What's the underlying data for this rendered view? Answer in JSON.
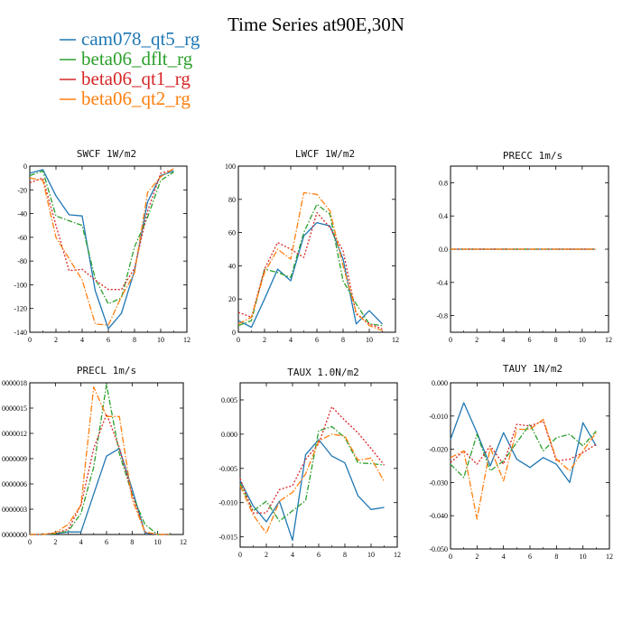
{
  "page_title": "Time Series at90E,30N",
  "colors": {
    "cam078_qt5_rg": "#1f77b4",
    "beta06_dflt_rg": "#2ca02c",
    "beta06_qt1_rg": "#d62728",
    "beta06_qt2_rg": "#ff7f0e"
  },
  "chart_data": [
    {
      "type": "line",
      "title": "SWCF   1W/m2",
      "x": [
        0,
        1,
        2,
        3,
        4,
        5,
        6,
        7,
        8,
        9,
        10,
        11
      ],
      "xlim": [
        0,
        12
      ],
      "xticks": [
        "0",
        "2",
        "4",
        "6",
        "8",
        "10",
        "12"
      ],
      "ylim": [
        -140,
        0
      ],
      "yticks": [
        "0",
        "-20",
        "-40",
        "-60",
        "-80",
        "-100",
        "-120",
        "-140"
      ],
      "ytick_values": [
        0,
        -20,
        -40,
        -60,
        -80,
        -100,
        -120,
        -140
      ],
      "series": [
        {
          "name": "cam078_qt5_rg",
          "values": [
            -6,
            -3,
            -25,
            -41,
            -42,
            -105,
            -137,
            -124,
            -88,
            -30,
            -8,
            -4
          ]
        },
        {
          "name": "beta06_dflt_rg",
          "values": [
            -8,
            -4,
            -42,
            -46,
            -50,
            -95,
            -116,
            -111,
            -68,
            -43,
            -12,
            -5
          ]
        },
        {
          "name": "beta06_qt1_rg",
          "values": [
            -14,
            -10,
            -50,
            -88,
            -87,
            -96,
            -104,
            -104,
            -86,
            -38,
            -6,
            -3
          ]
        },
        {
          "name": "beta06_qt2_rg",
          "values": [
            -10,
            -12,
            -60,
            -78,
            -96,
            -133,
            -134,
            -110,
            -90,
            -22,
            -9,
            -2
          ]
        }
      ]
    },
    {
      "type": "line",
      "title": "LWCF   1W/m2",
      "x": [
        0,
        1,
        2,
        3,
        4,
        5,
        6,
        7,
        8,
        9,
        10,
        11
      ],
      "xlim": [
        0,
        12
      ],
      "xticks": [
        "0",
        "2",
        "4",
        "6",
        "8",
        "10",
        "12"
      ],
      "ylim": [
        0,
        100
      ],
      "yticks": [
        "0",
        "20",
        "40",
        "60",
        "80",
        "100"
      ],
      "ytick_values": [
        0,
        20,
        40,
        60,
        80,
        100
      ],
      "series": [
        {
          "name": "cam078_qt5_rg",
          "values": [
            7,
            3,
            20,
            38,
            31,
            58,
            66,
            64,
            44,
            5,
            13,
            5
          ]
        },
        {
          "name": "beta06_dflt_rg",
          "values": [
            4,
            7,
            38,
            36,
            33,
            60,
            77,
            71,
            31,
            17,
            5,
            4
          ]
        },
        {
          "name": "beta06_qt1_rg",
          "values": [
            12,
            9,
            38,
            54,
            50,
            45,
            72,
            63,
            49,
            11,
            5,
            2
          ]
        },
        {
          "name": "beta06_qt2_rg",
          "values": [
            5,
            9,
            36,
            50,
            44,
            84,
            83,
            73,
            40,
            12,
            4,
            1
          ]
        }
      ]
    },
    {
      "type": "line",
      "title": "PRECC   1m/s",
      "x": [
        0,
        1,
        2,
        3,
        4,
        5,
        6,
        7,
        8,
        9,
        10,
        11
      ],
      "xlim": [
        0,
        12
      ],
      "xticks": [
        "0",
        "2",
        "4",
        "6",
        "8",
        "10",
        "12"
      ],
      "ylim": [
        -1,
        1
      ],
      "yticks": [
        "0.8",
        "0.4",
        "0.0",
        "-0.4",
        "-0.8"
      ],
      "ytick_values": [
        0.8,
        0.4,
        0.0,
        -0.4,
        -0.8
      ],
      "series": [
        {
          "name": "cam078_qt5_rg",
          "values": [
            0,
            0,
            0,
            0,
            0,
            0,
            0,
            0,
            0,
            0,
            0,
            0
          ]
        },
        {
          "name": "beta06_dflt_rg",
          "values": [
            0,
            0,
            0,
            0,
            0,
            0,
            0,
            0,
            0,
            0,
            0,
            0
          ]
        },
        {
          "name": "beta06_qt1_rg",
          "values": [
            0,
            0,
            0,
            0,
            0,
            0,
            0,
            0,
            0,
            0,
            0,
            0
          ]
        },
        {
          "name": "beta06_qt2_rg",
          "values": [
            0,
            0,
            0,
            0,
            0,
            0,
            0,
            0,
            0,
            0,
            0,
            0
          ]
        }
      ]
    },
    {
      "type": "line",
      "title": "PRECL   1m/s",
      "x": [
        0,
        1,
        2,
        3,
        4,
        5,
        6,
        7,
        8,
        9,
        10,
        11
      ],
      "xlim": [
        0,
        12
      ],
      "xticks": [
        "0",
        "2",
        "4",
        "6",
        "8",
        "10",
        "12"
      ],
      "ylim": [
        0,
        1.8e-05
      ],
      "yticks": [
        "0000018",
        "0000015",
        "0000012",
        "0000009",
        "0000006",
        "0000003",
        "0000000"
      ],
      "ytick_values": [
        1.8e-05,
        1.5e-05,
        1.2e-05,
        9e-06,
        6e-06,
        3e-06,
        0
      ],
      "series": [
        {
          "name": "cam078_qt5_rg",
          "values": [
            0,
            0,
            1e-07,
            3e-07,
            3e-07,
            4.8e-06,
            9.3e-06,
            1.02e-05,
            5.4e-06,
            2e-07,
            0,
            0
          ]
        },
        {
          "name": "beta06_dflt_rg",
          "values": [
            0,
            0,
            1e-07,
            4e-07,
            2.5e-06,
            8e-06,
            1.78e-05,
            9.6e-06,
            4.8e-06,
            1.2e-06,
            0,
            0
          ]
        },
        {
          "name": "beta06_qt1_rg",
          "values": [
            0,
            0,
            2e-07,
            6e-07,
            3.5e-06,
            1.02e-05,
            1.43e-05,
            1.03e-05,
            4.8e-06,
            3e-07,
            0,
            0
          ]
        },
        {
          "name": "beta06_qt2_rg",
          "values": [
            0,
            0,
            2e-07,
            1.2e-06,
            3.5e-06,
            1.75e-05,
            1.4e-05,
            1.4e-05,
            4.2e-06,
            3e-07,
            0,
            0
          ]
        }
      ]
    },
    {
      "type": "line",
      "title": "TAUX   1.0N/m2",
      "x": [
        0,
        1,
        2,
        3,
        4,
        5,
        6,
        7,
        8,
        9,
        10,
        11
      ],
      "xlim": [
        0,
        12
      ],
      "xticks": [
        "0",
        "2",
        "4",
        "6",
        "8",
        "10",
        "12"
      ],
      "ylim": [
        -0.0165,
        0.0075
      ],
      "yticks": [
        "0.005",
        "0.000",
        "-0.005",
        "-0.010",
        "-0.015"
      ],
      "ytick_values": [
        0.005,
        0,
        -0.005,
        -0.01,
        -0.015
      ],
      "series": [
        {
          "name": "cam078_qt5_rg",
          "values": [
            -0.0068,
            -0.0105,
            -0.0128,
            -0.0098,
            -0.0155,
            -0.003,
            -0.0008,
            -0.0032,
            -0.0042,
            -0.009,
            -0.011,
            -0.0107
          ]
        },
        {
          "name": "beta06_dflt_rg",
          "values": [
            -0.0072,
            -0.0112,
            -0.0098,
            -0.0127,
            -0.0112,
            -0.0097,
            0.0005,
            0.0011,
            -0.0005,
            -0.0042,
            -0.0043,
            -0.0045
          ]
        },
        {
          "name": "beta06_qt1_rg",
          "values": [
            -0.0065,
            -0.0115,
            -0.0115,
            -0.0081,
            -0.0075,
            -0.0037,
            -0.0014,
            0.004,
            0.002,
            0.0002,
            -0.0021,
            -0.0045
          ]
        },
        {
          "name": "beta06_qt2_rg",
          "values": [
            -0.0075,
            -0.0118,
            -0.0145,
            -0.0098,
            -0.0085,
            -0.0058,
            -0.001,
            0,
            -0.0003,
            -0.0038,
            -0.0035,
            -0.0069
          ]
        }
      ]
    },
    {
      "type": "line",
      "title": "TAUY   1N/m2",
      "x": [
        0,
        1,
        2,
        3,
        4,
        5,
        6,
        7,
        8,
        9,
        10,
        11
      ],
      "xlim": [
        0,
        12
      ],
      "xticks": [
        "0",
        "2",
        "4",
        "6",
        "8",
        "10",
        "12"
      ],
      "ylim": [
        -0.05,
        0
      ],
      "yticks": [
        "0.000",
        "-0.010",
        "-0.020",
        "-0.030",
        "-0.040",
        "-0.050"
      ],
      "ytick_values": [
        0,
        -0.01,
        -0.02,
        -0.03,
        -0.04,
        -0.05
      ],
      "series": [
        {
          "name": "cam078_qt5_rg",
          "values": [
            -0.017,
            -0.006,
            -0.015,
            -0.025,
            -0.015,
            -0.023,
            -0.0255,
            -0.0225,
            -0.0245,
            -0.03,
            -0.012,
            -0.019
          ]
        },
        {
          "name": "beta06_dflt_rg",
          "values": [
            -0.0245,
            -0.0285,
            -0.0155,
            -0.0265,
            -0.0235,
            -0.018,
            -0.0125,
            -0.0205,
            -0.0165,
            -0.0155,
            -0.019,
            -0.0145
          ]
        },
        {
          "name": "beta06_qt1_rg",
          "values": [
            -0.024,
            -0.0205,
            -0.0245,
            -0.019,
            -0.0245,
            -0.0125,
            -0.013,
            -0.0115,
            -0.0235,
            -0.023,
            -0.021,
            -0.0185
          ]
        },
        {
          "name": "beta06_qt2_rg",
          "values": [
            -0.0225,
            -0.0205,
            -0.041,
            -0.0195,
            -0.0295,
            -0.014,
            -0.014,
            -0.011,
            -0.023,
            -0.0265,
            -0.0205,
            -0.015
          ]
        }
      ]
    }
  ]
}
